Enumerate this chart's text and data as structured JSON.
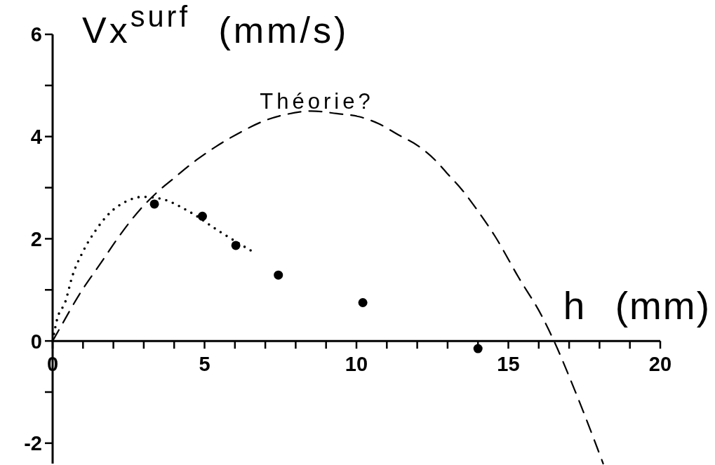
{
  "chart_data": {
    "type": "line",
    "xlabel": "h (mm)",
    "ylabel": "Vx$^{surf}$ (mm/s)",
    "xlim": [
      0,
      20
    ],
    "ylim": [
      -2.4,
      6
    ],
    "xticks": [
      0,
      {
        "value": 1,
        "label": null
      },
      {
        "value": 2,
        "label": null
      },
      {
        "value": 3,
        "label": null
      },
      {
        "value": 4,
        "label": null
      },
      5,
      {
        "value": 6,
        "label": null
      },
      {
        "value": 7,
        "label": null
      },
      {
        "value": 8,
        "label": null
      },
      {
        "value": 9,
        "label": null
      },
      10,
      {
        "value": 11,
        "label": null
      },
      {
        "value": 12,
        "label": null
      },
      {
        "value": 13,
        "label": null
      },
      {
        "value": 14,
        "label": null
      },
      15,
      {
        "value": 16,
        "label": null
      },
      {
        "value": 17,
        "label": null
      },
      {
        "value": 18,
        "label": null
      },
      {
        "value": 19,
        "label": null
      },
      20
    ],
    "yticks": [
      -2,
      {
        "value": -1,
        "label": null
      },
      0,
      {
        "value": 1,
        "label": null
      },
      2,
      {
        "value": 3,
        "label": null
      },
      4,
      {
        "value": 5,
        "label": null
      },
      6
    ],
    "series": [
      {
        "type": "scatter",
        "color": "#000000",
        "marker": "circle",
        "x": [
          3.35,
          4.93,
          6.03,
          7.43,
          10.21,
          14.0
        ],
        "values": [
          2.68,
          2.44,
          1.87,
          1.29,
          0.75,
          -0.15
        ]
      },
      {
        "color": "#000000",
        "marker": "none",
        "line_style": "dotted",
        "x": [
          0,
          0.15,
          0.42,
          0.65,
          1.0,
          1.39,
          1.89,
          2.42,
          2.96,
          3.58,
          4.5,
          5.5,
          6.58
        ],
        "values": [
          0,
          0.43,
          0.77,
          1.27,
          1.75,
          2.14,
          2.51,
          2.73,
          2.82,
          2.78,
          2.53,
          2.14,
          1.75
        ]
      },
      {
        "name": "Théorie?",
        "color": "#000000",
        "marker": "none",
        "line_style": "dashed",
        "x": [
          0,
          0.23,
          0.88,
          1.58,
          2.19,
          2.89,
          3.42,
          3.96,
          4.73,
          5.39,
          6.2,
          6.93,
          7.66,
          8.51,
          9.35,
          10.08,
          10.74,
          11.36,
          12.05,
          12.59,
          12.97,
          13.5,
          13.99,
          14.57,
          15.34,
          16.1,
          16.54,
          16.97,
          17.55,
          18.12
        ],
        "values": [
          0,
          0.24,
          0.91,
          1.52,
          2.05,
          2.58,
          2.9,
          3.17,
          3.54,
          3.81,
          4.09,
          4.3,
          4.43,
          4.5,
          4.45,
          4.39,
          4.25,
          4.04,
          3.81,
          3.54,
          3.29,
          2.94,
          2.55,
          2.04,
          1.24,
          0.49,
          -0.05,
          -0.65,
          -1.51,
          -2.4
        ]
      }
    ]
  }
}
